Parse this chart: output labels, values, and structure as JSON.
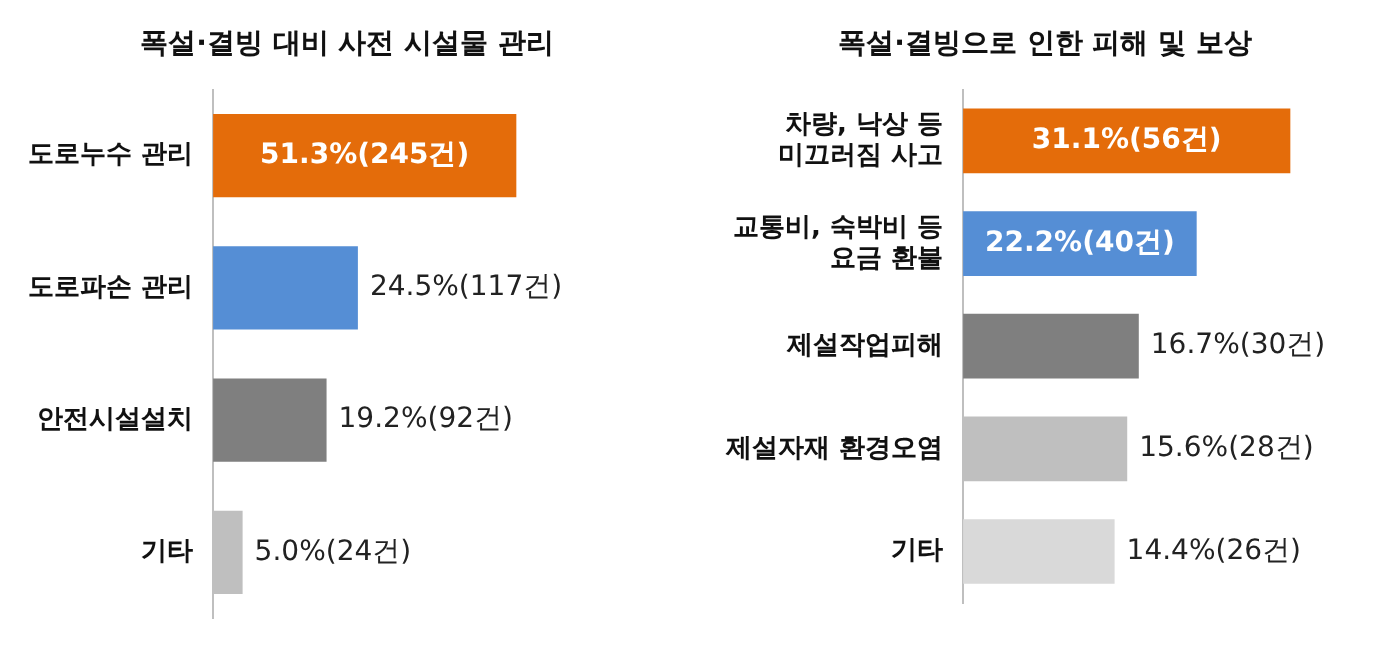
{
  "chart_data": [
    {
      "type": "bar",
      "orientation": "horizontal",
      "title": "폭설·결빙 대비 사전 시설물 관리",
      "categories": [
        "도로누수 관리",
        "도로파손 관리",
        "안전시설설치",
        "기타"
      ],
      "values": [
        51.3,
        24.5,
        19.2,
        5.0
      ],
      "colors": [
        "#e46c0a",
        "#558ed5",
        "#7f7f7f",
        "#bfbfbf"
      ],
      "value_labels": [
        "51.3%(245건)",
        "24.5%(117건)",
        "19.2%(92건)",
        "5.0%(24건)"
      ],
      "legend": false
    },
    {
      "type": "bar",
      "orientation": "horizontal",
      "title": "폭설·결빙으로 인한 피해 및 보상",
      "categories": [
        "차량, 낙상 등\n미끄러짐 사고",
        "교통비, 숙박비 등\n요금 환불",
        "제설작업피해",
        "제설자재 환경오염",
        "기타"
      ],
      "values": [
        31.1,
        22.2,
        16.7,
        15.6,
        14.4
      ],
      "colors": [
        "#e46c0a",
        "#558ed5",
        "#7f7f7f",
        "#bfbfbf",
        "#d9d9d9"
      ],
      "value_labels": [
        "31.1%(56건)",
        "22.2%(40건)",
        "16.7%(30건)",
        "15.6%(28건)",
        "14.4%(26건)"
      ],
      "legend": false
    }
  ]
}
